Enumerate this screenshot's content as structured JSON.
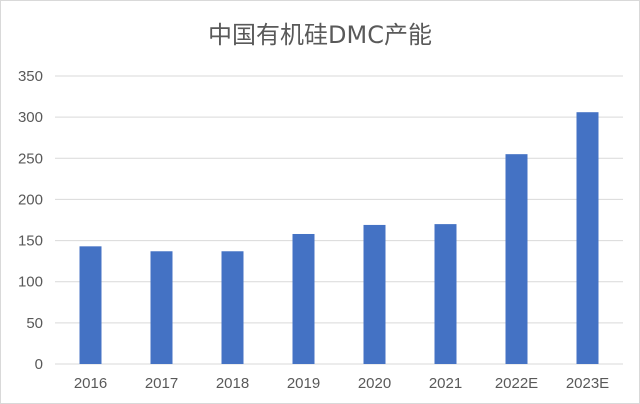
{
  "chart_data": {
    "type": "bar",
    "title": "中国有机硅DMC产能",
    "categories": [
      "2016",
      "2017",
      "2018",
      "2019",
      "2020",
      "2021",
      "2022E",
      "2023E"
    ],
    "series": [
      {
        "values": [
          143,
          137,
          137,
          158,
          169,
          170,
          255,
          306
        ]
      }
    ],
    "yticks": [
      0,
      50,
      100,
      150,
      200,
      250,
      300,
      350
    ],
    "ylim": [
      0,
      350
    ],
    "grid": true,
    "legend": "none",
    "colors": {
      "bar": "#4472c4",
      "grid": "#d9d9d9",
      "text": "#595959"
    }
  }
}
